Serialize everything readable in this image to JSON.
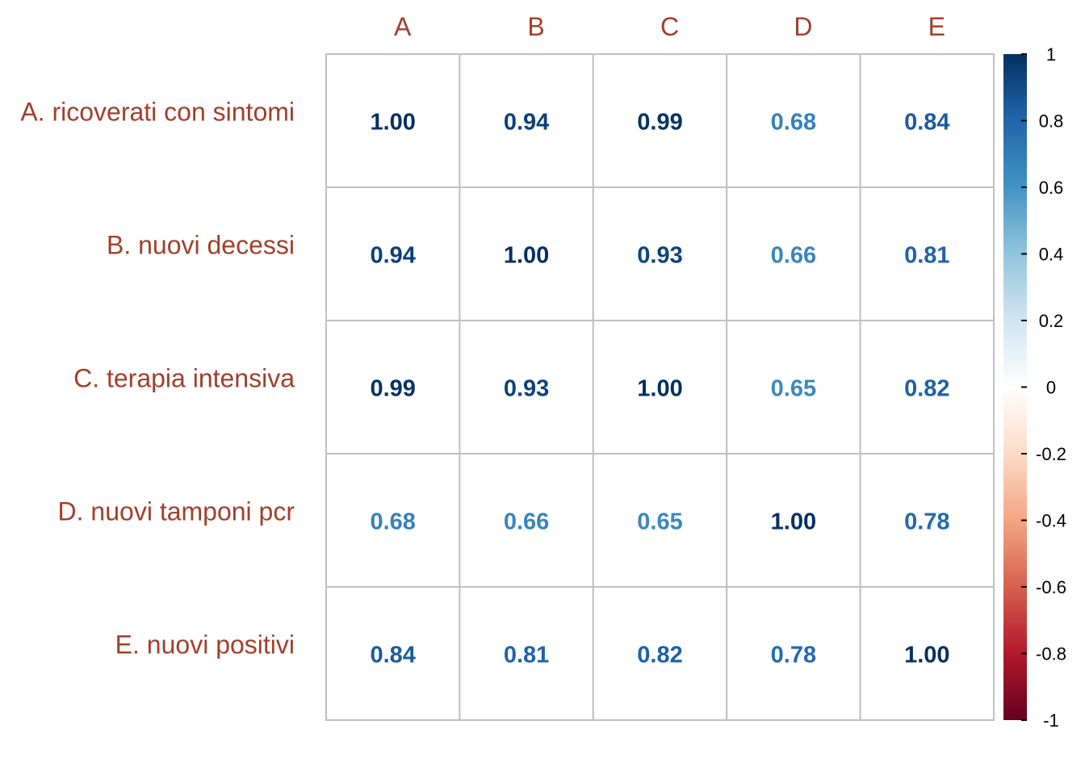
{
  "chart_data": {
    "type": "heatmap",
    "title": "",
    "column_labels": [
      "A",
      "B",
      "C",
      "D",
      "E"
    ],
    "row_labels": [
      "A. ricoverati con sintomi",
      "B. nuovi decessi",
      "C. terapia intensiva",
      "D. nuovi tamponi pcr",
      "E. nuovi positivi"
    ],
    "values": [
      [
        1.0,
        0.94,
        0.99,
        0.68,
        0.84
      ],
      [
        0.94,
        1.0,
        0.93,
        0.66,
        0.81
      ],
      [
        0.99,
        0.93,
        1.0,
        0.65,
        0.82
      ],
      [
        0.68,
        0.66,
        0.65,
        1.0,
        0.78
      ],
      [
        0.84,
        0.81,
        0.82,
        0.78,
        1.0
      ]
    ],
    "value_labels": [
      [
        "1.00",
        "0.94",
        "0.99",
        "0.68",
        "0.84"
      ],
      [
        "0.94",
        "1.00",
        "0.93",
        "0.66",
        "0.81"
      ],
      [
        "0.99",
        "0.93",
        "1.00",
        "0.65",
        "0.82"
      ],
      [
        "0.68",
        "0.66",
        "0.65",
        "1.00",
        "0.78"
      ],
      [
        "0.84",
        "0.81",
        "0.82",
        "0.78",
        "1.00"
      ]
    ],
    "color_scale": {
      "range": [
        -1,
        1
      ],
      "ticks": [
        1,
        0.8,
        0.6,
        0.4,
        0.2,
        0,
        -0.2,
        -0.4,
        -0.6,
        -0.8,
        -1
      ],
      "tick_labels": [
        "1",
        "0.8",
        "0.6",
        "0.4",
        "0.2",
        "0",
        "-0.2",
        "-0.4",
        "-0.6",
        "-0.8",
        "-1"
      ],
      "colors": [
        "#67001F",
        "#B2182B",
        "#D6604D",
        "#F4A582",
        "#FDDBC7",
        "#FFFFFF",
        "#D1E5F0",
        "#92C5DE",
        "#4393C3",
        "#2166AC",
        "#053061"
      ]
    },
    "label_color": "#A0402B",
    "grid_color": "#C0C0C0",
    "legend_position": "right"
  }
}
